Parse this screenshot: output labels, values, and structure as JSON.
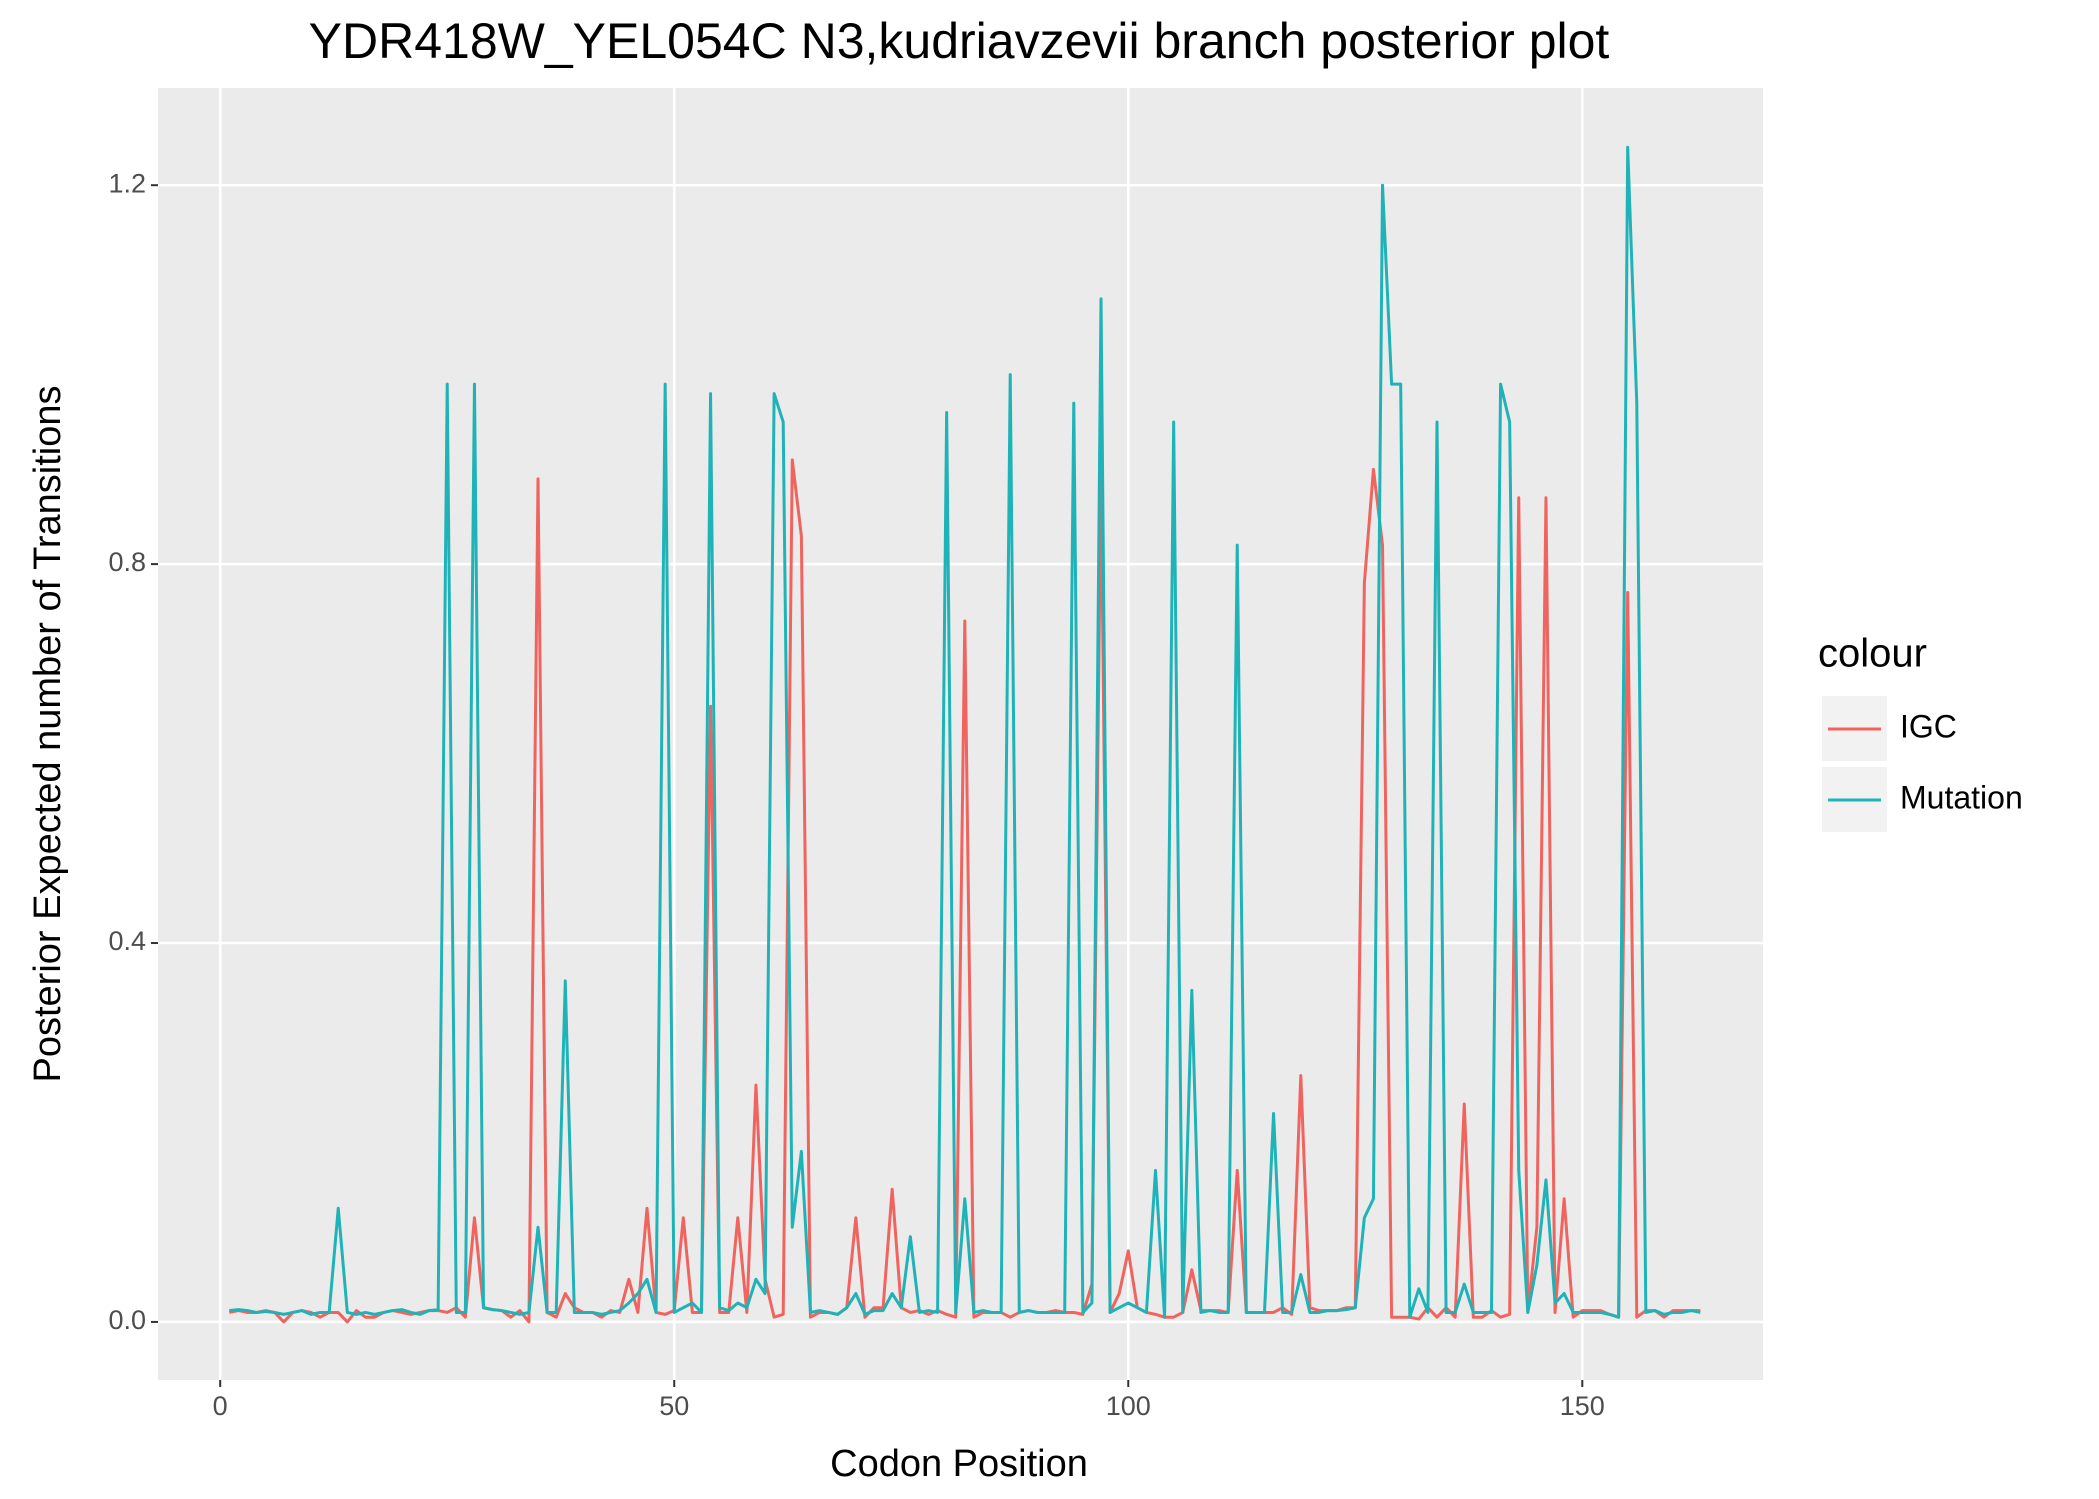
{
  "chart_data": {
    "type": "line",
    "title": "YDR418W_YEL054C N3,kudriavzevii branch posterior plot",
    "x_label": "Codon Position",
    "y_label": "Posterior Expected number of Transitions",
    "legend_title": "colour",
    "legend_position": "right",
    "grid": true,
    "xlim": [
      -6.85,
      169.9
    ],
    "ylim": [
      -0.0613,
      1.3026
    ],
    "xticks": [
      0,
      50,
      100,
      150
    ],
    "yticks": [
      {
        "value": 0,
        "label": "0.0"
      },
      {
        "value": 0.4,
        "label": "0.4"
      },
      {
        "value": 0.8,
        "label": "0.8"
      },
      {
        "value": 1.2,
        "label": "1.2"
      }
    ],
    "x": [
      1,
      2,
      3,
      4,
      5,
      6,
      7,
      8,
      9,
      10,
      11,
      12,
      13,
      14,
      15,
      16,
      17,
      18,
      19,
      20,
      21,
      22,
      23,
      24,
      25,
      26,
      27,
      28,
      29,
      30,
      31,
      32,
      33,
      34,
      35,
      36,
      37,
      38,
      39,
      40,
      41,
      42,
      43,
      44,
      45,
      46,
      47,
      48,
      49,
      50,
      51,
      52,
      53,
      54,
      55,
      56,
      57,
      58,
      59,
      60,
      61,
      62,
      63,
      64,
      65,
      66,
      67,
      68,
      69,
      70,
      71,
      72,
      73,
      74,
      75,
      76,
      77,
      78,
      79,
      80,
      81,
      82,
      83,
      84,
      85,
      86,
      87,
      88,
      89,
      90,
      91,
      92,
      93,
      94,
      95,
      96,
      97,
      98,
      99,
      100,
      101,
      102,
      103,
      104,
      105,
      106,
      107,
      108,
      109,
      110,
      111,
      112,
      113,
      114,
      115,
      116,
      117,
      118,
      119,
      120,
      121,
      122,
      123,
      124,
      125,
      126,
      127,
      128,
      129,
      130,
      131,
      132,
      133,
      134,
      135,
      136,
      137,
      138,
      139,
      140,
      141,
      142,
      143,
      144,
      145,
      146,
      147,
      148,
      149,
      150,
      151,
      152,
      153,
      154,
      155,
      156,
      157,
      158,
      159,
      160,
      161,
      162,
      163
    ],
    "series": [
      {
        "name": "IGC",
        "color": "#f0645f",
        "values": [
          0.01,
          0.012,
          0.01,
          0.01,
          0.012,
          0.01,
          0.0,
          0.01,
          0.012,
          0.01,
          0.005,
          0.01,
          0.01,
          0.0,
          0.012,
          0.005,
          0.005,
          0.01,
          0.012,
          0.01,
          0.008,
          0.01,
          0.012,
          0.012,
          0.01,
          0.015,
          0.005,
          0.11,
          0.015,
          0.013,
          0.012,
          0.005,
          0.012,
          0.0,
          0.89,
          0.01,
          0.005,
          0.03,
          0.015,
          0.01,
          0.01,
          0.005,
          0.012,
          0.01,
          0.045,
          0.01,
          0.12,
          0.01,
          0.008,
          0.012,
          0.11,
          0.01,
          0.01,
          0.65,
          0.01,
          0.01,
          0.11,
          0.01,
          0.25,
          0.045,
          0.005,
          0.008,
          0.91,
          0.83,
          0.005,
          0.01,
          0.01,
          0.008,
          0.015,
          0.11,
          0.005,
          0.015,
          0.015,
          0.14,
          0.015,
          0.01,
          0.012,
          0.008,
          0.012,
          0.008,
          0.005,
          0.74,
          0.005,
          0.01,
          0.01,
          0.01,
          0.005,
          0.01,
          0.012,
          0.01,
          0.01,
          0.012,
          0.01,
          0.01,
          0.008,
          0.04,
          0.9,
          0.01,
          0.03,
          0.075,
          0.015,
          0.01,
          0.008,
          0.005,
          0.005,
          0.01,
          0.055,
          0.012,
          0.012,
          0.012,
          0.01,
          0.16,
          0.01,
          0.01,
          0.01,
          0.01,
          0.015,
          0.008,
          0.26,
          0.015,
          0.012,
          0.012,
          0.012,
          0.015,
          0.015,
          0.78,
          0.9,
          0.82,
          0.005,
          0.005,
          0.005,
          0.003,
          0.015,
          0.005,
          0.015,
          0.005,
          0.23,
          0.005,
          0.005,
          0.012,
          0.005,
          0.008,
          0.87,
          0.01,
          0.1,
          0.87,
          0.01,
          0.13,
          0.005,
          0.012,
          0.012,
          0.012,
          0.008,
          0.005,
          0.77,
          0.005,
          0.012,
          0.012,
          0.005,
          0.012,
          0.012,
          0.012,
          0.012
        ]
      },
      {
        "name": "Mutation",
        "color": "#1fb3b8",
        "values": [
          0.012,
          0.013,
          0.012,
          0.01,
          0.011,
          0.01,
          0.008,
          0.01,
          0.012,
          0.008,
          0.01,
          0.01,
          0.12,
          0.01,
          0.008,
          0.01,
          0.008,
          0.01,
          0.012,
          0.013,
          0.01,
          0.008,
          0.012,
          0.013,
          0.99,
          0.01,
          0.01,
          0.99,
          0.015,
          0.013,
          0.012,
          0.01,
          0.008,
          0.01,
          0.1,
          0.01,
          0.01,
          0.36,
          0.01,
          0.01,
          0.01,
          0.008,
          0.01,
          0.012,
          0.02,
          0.03,
          0.045,
          0.01,
          0.99,
          0.01,
          0.015,
          0.02,
          0.01,
          0.98,
          0.015,
          0.012,
          0.02,
          0.015,
          0.045,
          0.03,
          0.98,
          0.95,
          0.1,
          0.18,
          0.01,
          0.012,
          0.01,
          0.008,
          0.015,
          0.03,
          0.008,
          0.012,
          0.012,
          0.03,
          0.015,
          0.09,
          0.01,
          0.012,
          0.01,
          0.96,
          0.01,
          0.13,
          0.01,
          0.012,
          0.01,
          0.01,
          1.0,
          0.01,
          0.012,
          0.01,
          0.01,
          0.01,
          0.01,
          0.97,
          0.01,
          0.02,
          1.08,
          0.01,
          0.015,
          0.02,
          0.015,
          0.01,
          0.16,
          0.005,
          0.95,
          0.01,
          0.35,
          0.01,
          0.012,
          0.01,
          0.01,
          0.82,
          0.01,
          0.01,
          0.01,
          0.22,
          0.01,
          0.01,
          0.05,
          0.01,
          0.01,
          0.012,
          0.012,
          0.013,
          0.015,
          0.11,
          0.13,
          1.2,
          0.99,
          0.99,
          0.005,
          0.035,
          0.01,
          0.95,
          0.01,
          0.01,
          0.04,
          0.01,
          0.01,
          0.01,
          0.99,
          0.95,
          0.16,
          0.01,
          0.06,
          0.15,
          0.02,
          0.03,
          0.01,
          0.01,
          0.01,
          0.01,
          0.008,
          0.005,
          1.24,
          0.97,
          0.01,
          0.012,
          0.008,
          0.01,
          0.01,
          0.012,
          0.01
        ]
      }
    ]
  }
}
